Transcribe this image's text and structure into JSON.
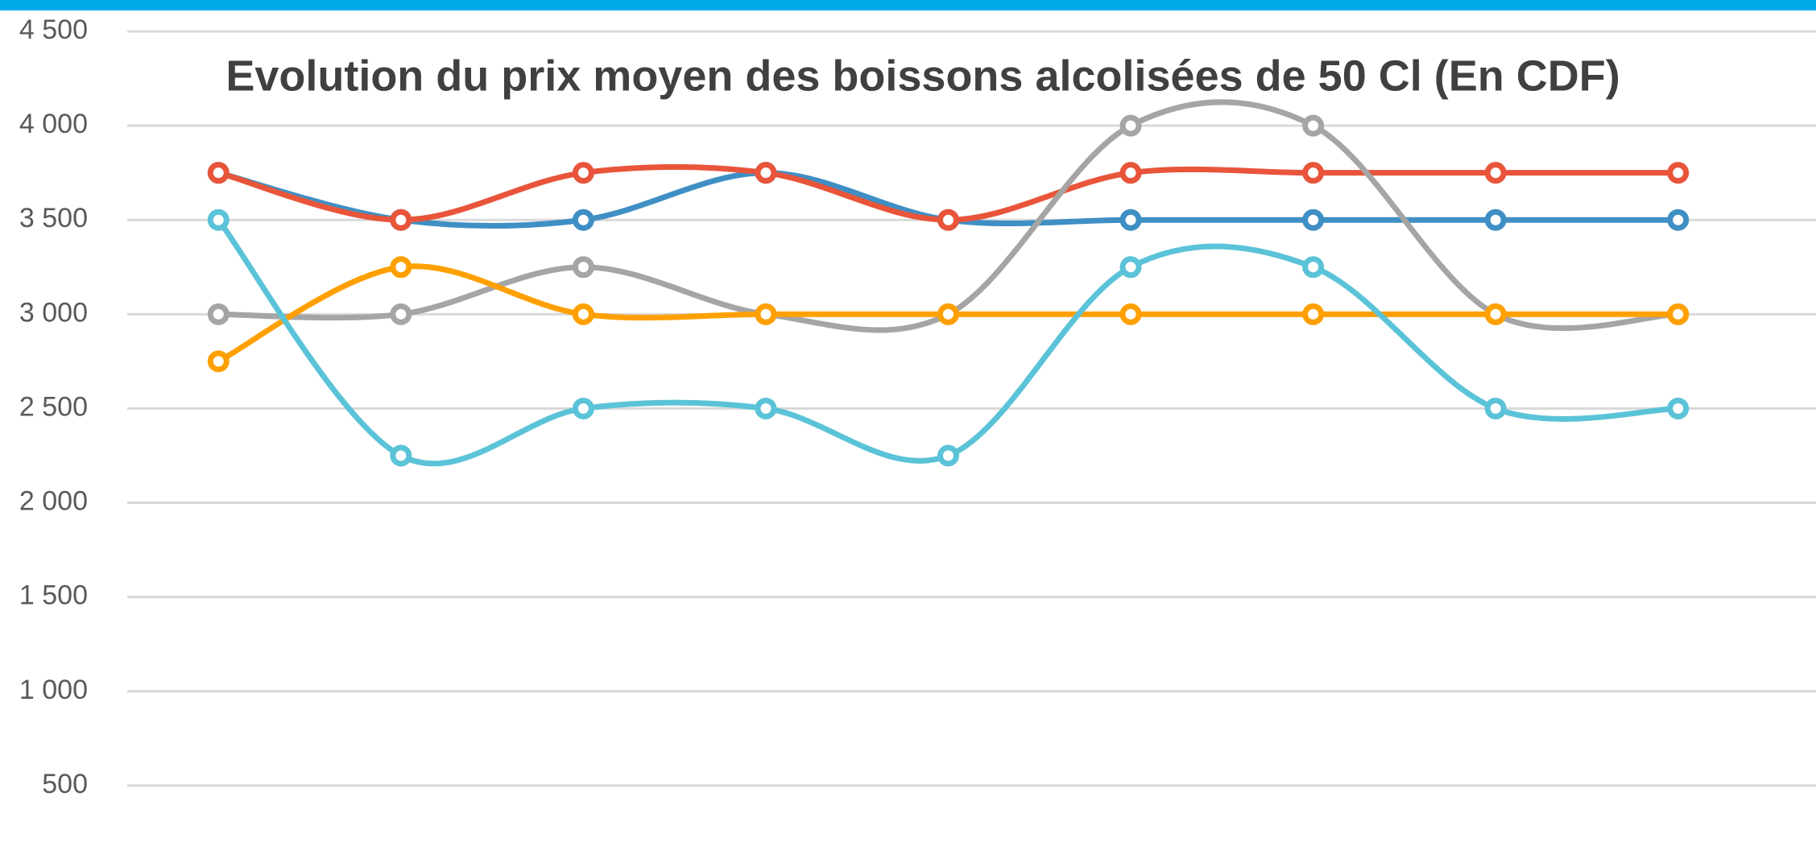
{
  "chart_data": {
    "type": "line",
    "title": "Evolution du prix moyen des boissons alcolisées de 50 Cl (En CDF)",
    "categories": [
      null,
      null,
      null,
      null,
      null,
      null,
      null,
      null,
      null
    ],
    "series": [
      {
        "color": "#3f8fc4",
        "values": [
          3750,
          3500,
          3500,
          3750,
          3500,
          3500,
          3500,
          3500,
          3500
        ]
      },
      {
        "color": "#e8553a",
        "values": [
          3750,
          3500,
          3750,
          3750,
          3500,
          3750,
          3750,
          3750,
          3750
        ]
      },
      {
        "color": "#a5a5a5",
        "values": [
          3000,
          3000,
          3250,
          3000,
          3000,
          4000,
          4000,
          3000,
          3000
        ]
      },
      {
        "color": "#ffa000",
        "values": [
          2750,
          3250,
          3000,
          3000,
          3000,
          3000,
          3000,
          3000,
          3000
        ]
      },
      {
        "color": "#5bc3d8",
        "values": [
          3500,
          2250,
          2500,
          2500,
          2250,
          3250,
          3250,
          2500,
          2500
        ]
      }
    ],
    "ylim": [
      0,
      4500
    ],
    "yticks": [
      500,
      {
        "value": 1000,
        "label": "1 000"
      },
      {
        "value": 1500,
        "label": "1 500"
      },
      {
        "value": 2000,
        "label": "2 000"
      },
      {
        "value": 2500,
        "label": "2 500"
      },
      {
        "value": 3000,
        "label": "3 000"
      },
      {
        "value": 3500,
        "label": "3 500"
      },
      {
        "value": 4000,
        "label": "4 000"
      },
      {
        "value": 4500,
        "label": "4 500"
      }
    ],
    "grid": true,
    "smooth": true
  }
}
